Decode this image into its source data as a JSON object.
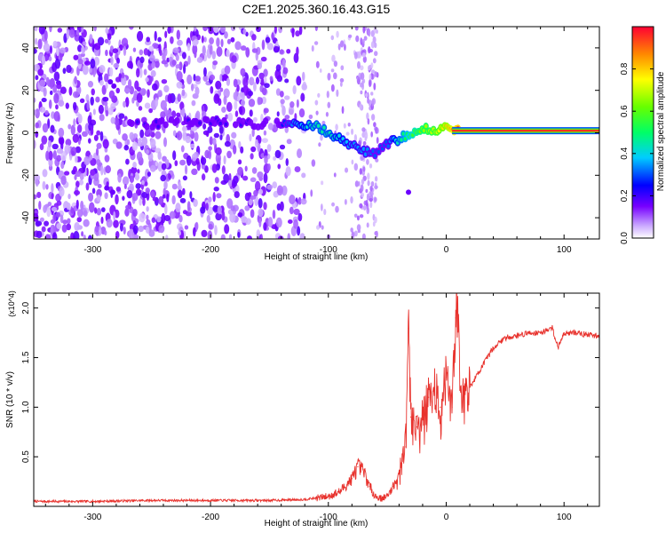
{
  "title": "C2E1.2025.360.16.43.G15",
  "chart_data": [
    {
      "type": "heatmap",
      "xlabel": "Height of straight line (km)",
      "ylabel": "Frequency (Hz)",
      "xlim": [
        -350,
        130
      ],
      "ylim": [
        -50,
        50
      ],
      "xticks": [
        -300,
        -200,
        -100,
        0,
        100
      ],
      "yticks": [
        -40,
        -20,
        0,
        20,
        40
      ],
      "colorbar": {
        "label": "Normalized spectral amplitude",
        "range": [
          0.0,
          1.0
        ],
        "ticks": [
          "0.0",
          "0.2",
          "0.4",
          "0.6",
          "0.8"
        ],
        "tick_values": [
          0.0,
          0.2,
          0.4,
          0.6,
          0.8
        ],
        "colormap": "rainbow"
      },
      "ridge": {
        "x": [
          -270,
          -250,
          -230,
          -200,
          -180,
          -160,
          -140,
          -130,
          -120,
          -110,
          -100,
          -90,
          -80,
          -70,
          -60,
          -50,
          -40,
          -30,
          -20,
          -10,
          0,
          10,
          130
        ],
        "y": [
          6,
          4,
          5,
          6,
          5,
          4,
          5,
          5,
          4,
          3,
          0,
          -3,
          -6,
          -9,
          -10,
          -5,
          -3,
          0,
          2,
          1,
          3,
          1,
          1
        ],
        "amplitude": [
          0.2,
          0.2,
          0.2,
          0.2,
          0.2,
          0.2,
          0.25,
          0.35,
          0.4,
          0.45,
          0.45,
          0.4,
          0.35,
          0.35,
          0.3,
          0.3,
          0.45,
          0.55,
          0.65,
          0.7,
          0.8,
          0.95,
          0.95
        ]
      }
    },
    {
      "type": "line",
      "xlabel": "Height of straight line (km)",
      "ylabel": "SNR (10 * v/v)",
      "multiplier": "(x10^4)",
      "xlim": [
        -350,
        130
      ],
      "ylim": [
        0,
        2.15
      ],
      "xticks": [
        -300,
        -200,
        -100,
        0,
        100
      ],
      "yticks": [
        0.5,
        1.0,
        1.5,
        2.0
      ],
      "ytick_labels": [
        "0.5",
        "1.0",
        "1.5",
        "2.0"
      ],
      "series": [
        {
          "color": "#e8322d",
          "x": [
            -350,
            -300,
            -250,
            -200,
            -150,
            -120,
            -100,
            -90,
            -80,
            -75,
            -70,
            -65,
            -60,
            -55,
            -50,
            -45,
            -40,
            -35,
            -32,
            -30,
            -25,
            -20,
            -15,
            -10,
            -5,
            0,
            5,
            8,
            10,
            12,
            15,
            20,
            30,
            40,
            50,
            60,
            70,
            80,
            90,
            95,
            100,
            110,
            120,
            130
          ],
          "y": [
            0.05,
            0.05,
            0.06,
            0.06,
            0.06,
            0.07,
            0.1,
            0.15,
            0.28,
            0.4,
            0.35,
            0.2,
            0.1,
            0.08,
            0.1,
            0.2,
            0.35,
            0.6,
            1.8,
            0.9,
            0.8,
            0.9,
            1.1,
            1.2,
            1.0,
            1.3,
            1.0,
            1.9,
            2.15,
            1.2,
            1.1,
            1.2,
            1.4,
            1.6,
            1.7,
            1.72,
            1.75,
            1.75,
            1.8,
            1.6,
            1.75,
            1.75,
            1.73,
            1.72
          ]
        }
      ]
    }
  ]
}
